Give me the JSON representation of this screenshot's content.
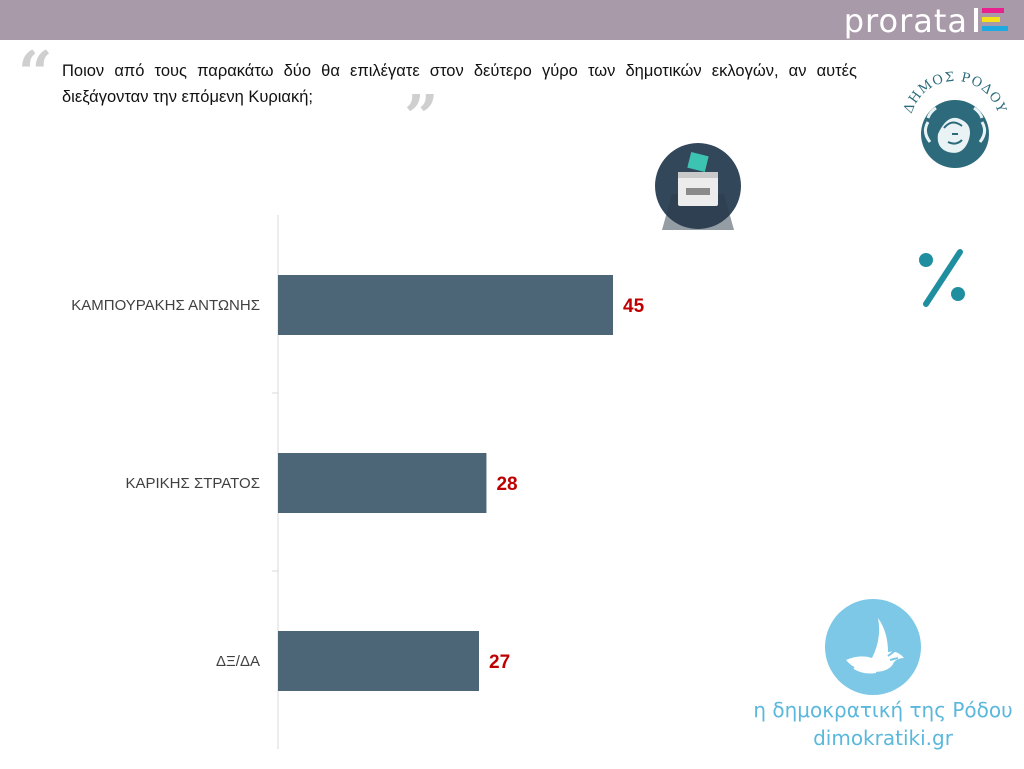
{
  "header": {
    "brand": "prorata"
  },
  "question": "Ποιον από τους παρακάτω δύο θα επιλέγατε στον δεύτερο γύρο των δημοτικών εκλογών, αν αυτές διεξάγονταν την επόμενη Κυριακή;",
  "seal": {
    "text": "ΔΗΜΟΣ ΡΟΔΟΥ",
    "color": "#2d6b7c"
  },
  "icons": {
    "ballot": "ballot-box-icon",
    "percent": "percent-icon",
    "dove": "dove-icon"
  },
  "footer": {
    "line1": "η δημοκρατική της Ρόδου",
    "line2": "dimokratiki.gr",
    "color": "#5bb8dc"
  },
  "chart_data": {
    "type": "bar",
    "orientation": "horizontal",
    "categories": [
      "ΚΑΜΠΟΥΡΑΚΗΣ ΑΝΤΩΝΗΣ",
      "ΚΑΡΙΚΗΣ ΣΤΡΑΤΟΣ",
      "ΔΞ/ΔΑ"
    ],
    "values": [
      45,
      28,
      27
    ],
    "bar_color": "#4c6678",
    "label_color": "#c00000",
    "xlim": [
      0,
      45
    ],
    "grid": false,
    "legend": "none"
  }
}
